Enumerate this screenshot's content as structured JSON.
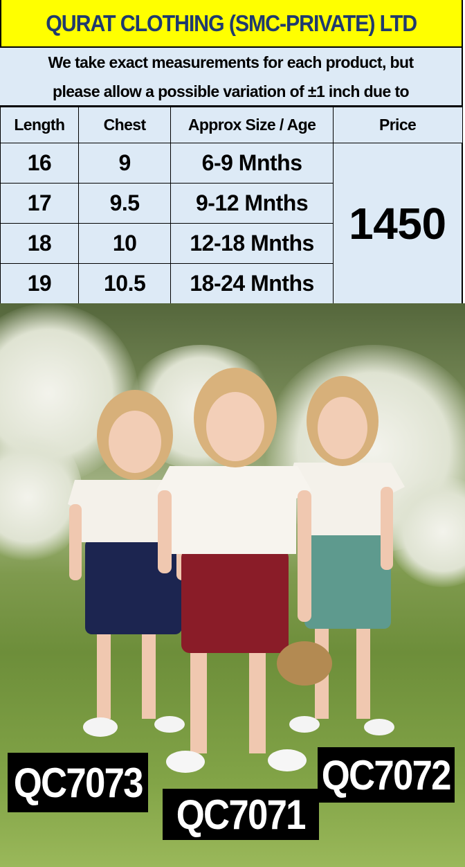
{
  "header": {
    "title": "QURAT CLOTHING (SMC-PRIVATE) LTD"
  },
  "note": {
    "line1": "We take exact measurements for each product, but",
    "line2": "please allow a possible variation of ±1 inch due to"
  },
  "size_table": {
    "columns": [
      "Length",
      "Chest",
      "Approx Size / Age",
      "Price"
    ],
    "rows": [
      {
        "length": "16",
        "chest": "9",
        "age": "6-9 Mnths"
      },
      {
        "length": "17",
        "chest": "9.5",
        "age": "9-12 Mnths"
      },
      {
        "length": "18",
        "chest": "10",
        "age": "12-18 Mnths"
      },
      {
        "length": "19",
        "chest": "10.5",
        "age": "18-24 Mnths"
      }
    ],
    "price": "1450"
  },
  "product_codes": {
    "left": "QC7073",
    "center": "QC7071",
    "right": "QC7072"
  },
  "colors": {
    "header_bg": "#ffff00",
    "title_text": "#1f3a6e",
    "table_bg": "#ddeaf6",
    "navy_shorts": "#1c2550",
    "maroon_shorts": "#8a1c28",
    "teal_shorts": "#5e9a8e"
  }
}
